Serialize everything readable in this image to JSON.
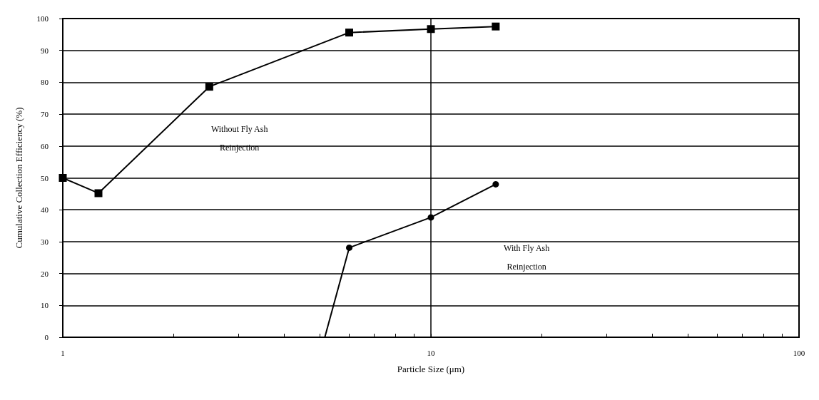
{
  "chart_data": {
    "type": "line",
    "xlabel": "Particle Size (μm)",
    "ylabel": "Cumulative Collection Efficiency (%)",
    "log": "x",
    "xlim": [
      1,
      100
    ],
    "xticks": [
      1,
      {
        "value": 2,
        "label": null
      },
      {
        "value": 3,
        "label": null
      },
      {
        "value": 4,
        "label": null
      },
      {
        "value": 5,
        "label": null
      },
      {
        "value": 6,
        "label": null
      },
      {
        "value": 7,
        "label": null
      },
      {
        "value": 8,
        "label": null
      },
      {
        "value": 9,
        "label": null
      },
      10,
      {
        "value": 20,
        "label": null
      },
      {
        "value": 30,
        "label": null
      },
      {
        "value": 40,
        "label": null
      },
      {
        "value": 50,
        "label": null
      },
      {
        "value": 60,
        "label": null
      },
      {
        "value": 70,
        "label": null
      },
      {
        "value": 80,
        "label": null
      },
      {
        "value": 90,
        "label": null
      },
      100
    ],
    "ylim": [
      0,
      100
    ],
    "yticks": [
      0,
      10,
      20,
      30,
      40,
      50,
      60,
      70,
      80,
      90,
      100
    ],
    "grid": true,
    "series": [
      {
        "color": "#000000",
        "marker": "square",
        "x": [
          1,
          1.25,
          2.5,
          6,
          10,
          15
        ],
        "values": [
          50,
          45.2,
          78.6,
          95.6,
          96.7,
          97.5
        ]
      },
      {
        "color": "#000000",
        "marker": "circle",
        "x": [
          6,
          10,
          15
        ],
        "values": [
          28.1,
          37.6,
          48
        ]
      },
      {
        "color": "#000000",
        "marker": "none",
        "x": [
          5.15,
          6
        ],
        "values": [
          0,
          28.1
        ]
      }
    ],
    "annotations": [
      "Without Fly Ash\nReinjection",
      "With Fly Ash\nReinjection"
    ]
  }
}
